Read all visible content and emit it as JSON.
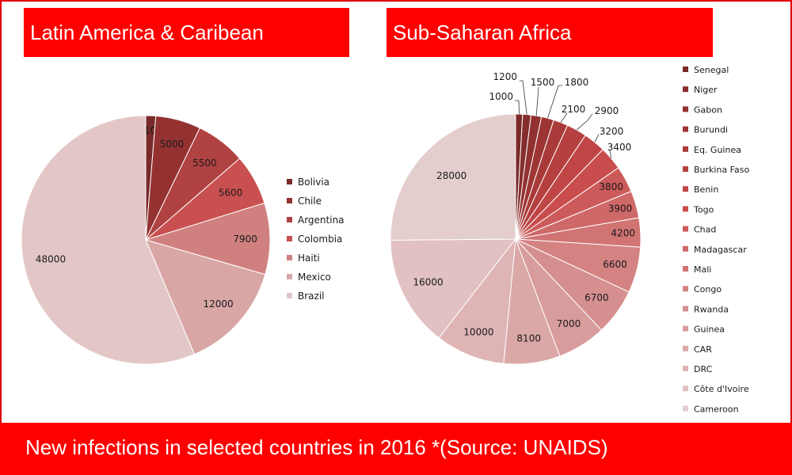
{
  "footer": {
    "text": "New infections in selected countries in 2016 *(Source: UNAIDS)"
  },
  "chart_data": [
    {
      "type": "pie",
      "title": "Latin America & Caribean",
      "labels": [
        "Bolivia",
        "Chile",
        "Argentina",
        "Colombia",
        "Haiti",
        "Mexico",
        "Brazil"
      ],
      "values": [
        1100,
        5000,
        5500,
        5600,
        7900,
        12000,
        48000
      ],
      "colors": [
        "#7a2a2a",
        "#943232",
        "#b04242",
        "#c95050",
        "#d18080",
        "#d9a6a6",
        "#e3c7c7"
      ],
      "legend": "right"
    },
    {
      "type": "pie",
      "title": "Sub-Saharan Africa",
      "labels": [
        "Senegal",
        "Niger",
        "Gabon",
        "Burundi",
        "Eq. Guinea",
        "Burkina Faso",
        "Benin",
        "Togo",
        "Chad",
        "Madagascar",
        "Mali",
        "Congo",
        "Rwanda",
        "Guinea",
        "CAR",
        "DRC",
        "Côte d'Ivoire",
        "Cameroon"
      ],
      "values": [
        1000,
        1200,
        1500,
        1800,
        2100,
        2900,
        3200,
        3400,
        3800,
        3900,
        4200,
        6600,
        6700,
        7000,
        8100,
        10000,
        16000,
        28000
      ],
      "colors": [
        "#7a2a2a",
        "#862d2d",
        "#923131",
        "#9e3535",
        "#aa3a3a",
        "#b64040",
        "#c04646",
        "#c94d4d",
        "#cc5a5a",
        "#cf6868",
        "#d17474",
        "#d48282",
        "#d68f8f",
        "#d99c9c",
        "#dba8a8",
        "#deb4b4",
        "#e1c1c1",
        "#e4cdcd"
      ],
      "legend": "right"
    }
  ]
}
